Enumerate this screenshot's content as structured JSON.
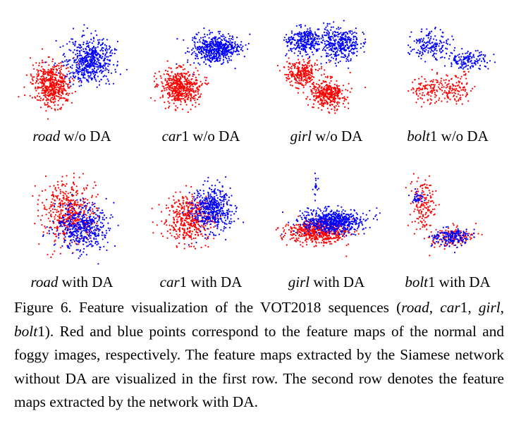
{
  "figure": {
    "panels": [
      {
        "name": "road",
        "suffix": " w/o DA",
        "row": 0,
        "col": 0
      },
      {
        "name": "car",
        "num": "1",
        "suffix": " w/o DA",
        "row": 0,
        "col": 1
      },
      {
        "name": "girl",
        "suffix": " w/o DA",
        "row": 0,
        "col": 2
      },
      {
        "name": "bolt",
        "num": "1",
        "suffix": " w/o DA",
        "row": 0,
        "col": 3
      },
      {
        "name": "road",
        "suffix": " with DA",
        "row": 1,
        "col": 0
      },
      {
        "name": "car",
        "num": "1",
        "suffix": " with DA",
        "row": 1,
        "col": 1
      },
      {
        "name": "girl",
        "suffix": " with DA",
        "row": 1,
        "col": 2
      },
      {
        "name": "bolt",
        "num": "1",
        "suffix": " with DA",
        "row": 1,
        "col": 3
      }
    ],
    "colors": {
      "normal": "#ff0000",
      "foggy": "#0000ff"
    }
  },
  "caption": {
    "label": "Figure 6.",
    "t1": " Feature visualization of the VOT2018 sequences (",
    "s1": "road",
    "t2": ", ",
    "s2": "car",
    "t3": "1, ",
    "s3": "girl",
    "t4": ", ",
    "s4": "bolt",
    "t5": "1).  Red and blue points correspond to the feature maps of the normal and foggy images, respectively.  The feature maps extracted by the Siamese network without DA are visualized in the first row. The second row denotes the feature maps extracted by the network with DA."
  }
}
